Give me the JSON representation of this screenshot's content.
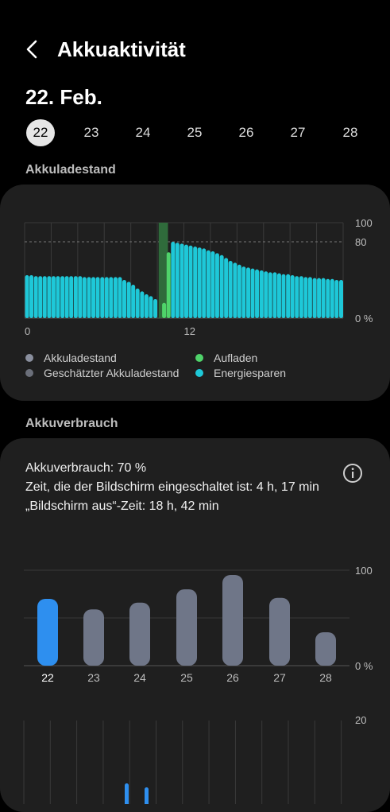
{
  "header": {
    "title": "Akkuaktivität",
    "back_icon": "chevron-left-icon"
  },
  "selected_date": "22. Feb.",
  "days": [
    {
      "label": "22",
      "selected": true
    },
    {
      "label": "23",
      "selected": false
    },
    {
      "label": "24",
      "selected": false
    },
    {
      "label": "25",
      "selected": false
    },
    {
      "label": "26",
      "selected": false
    },
    {
      "label": "27",
      "selected": false
    },
    {
      "label": "28",
      "selected": false
    }
  ],
  "battery_level": {
    "section_title": "Akkuladestand",
    "legend": [
      {
        "label": "Akkuladestand",
        "color": "#8a8f9e"
      },
      {
        "label": "Geschätzter Akkuladestand",
        "color": "#6b6f7a"
      },
      {
        "label": "Aufladen",
        "color": "#4fd36a"
      },
      {
        "label": "Energiesparen",
        "color": "#1ec8d8"
      }
    ]
  },
  "battery_usage": {
    "section_title": "Akkuverbrauch",
    "usage_line": "Akkuverbrauch: 70 %",
    "screen_on_line": "Zeit, die der Bildschirm eingeschaltet ist: 4 h, 17 min",
    "screen_off_line": "„Bildschirm aus“-Zeit: 18 h, 42 min",
    "info_icon": "info-icon"
  },
  "chart_data": [
    {
      "type": "bar",
      "title": "",
      "xlabel": "",
      "ylabel": "",
      "x_tick_labels": [
        "0",
        "12"
      ],
      "y_tick_labels": [
        "100",
        "80",
        "0 %"
      ],
      "ylim": [
        0,
        100
      ],
      "x_range_hours": [
        0,
        24
      ],
      "reference_line": 80,
      "charging_window_hours": [
        10.1,
        10.8
      ],
      "series": [
        {
          "name": "Energiesparen",
          "color": "#1ec8d8",
          "x": [
            0,
            0.33,
            0.67,
            1,
            1.33,
            1.67,
            2,
            2.33,
            2.67,
            3,
            3.33,
            3.67,
            4,
            4.33,
            4.67,
            5,
            5.33,
            5.67,
            6,
            6.33,
            6.67,
            7,
            7.33,
            7.67,
            8,
            8.33,
            8.67,
            9,
            9.33,
            9.67,
            11,
            11.33,
            11.67,
            12,
            12.33,
            12.67,
            13,
            13.33,
            13.67,
            14,
            14.33,
            14.67,
            15,
            15.33,
            15.67,
            16,
            16.33,
            16.67,
            17,
            17.33,
            17.67,
            18,
            18.33,
            18.67,
            19,
            19.33,
            19.67,
            20,
            20.33,
            20.67,
            21,
            21.33,
            21.67,
            22,
            22.33,
            22.67,
            23,
            23.33,
            23.67
          ],
          "values": [
            45,
            45,
            44,
            44,
            44,
            44,
            44,
            44,
            44,
            44,
            44,
            44,
            44,
            43,
            43,
            43,
            43,
            43,
            43,
            43,
            43,
            43,
            40,
            38,
            35,
            31,
            28,
            25,
            23,
            20,
            80,
            79,
            78,
            77,
            76,
            75,
            74,
            73,
            71,
            70,
            68,
            66,
            63,
            60,
            58,
            56,
            54,
            53,
            52,
            51,
            50,
            49,
            48,
            48,
            47,
            46,
            46,
            45,
            44,
            44,
            43,
            43,
            42,
            42,
            42,
            41,
            41,
            40,
            40
          ]
        },
        {
          "name": "Aufladen",
          "color": "#4fd36a",
          "x": [
            10.33,
            10.67
          ],
          "values": [
            16,
            69
          ]
        }
      ]
    },
    {
      "type": "bar",
      "title": "",
      "xlabel": "",
      "ylabel": "",
      "categories": [
        "22",
        "23",
        "24",
        "25",
        "26",
        "27",
        "28"
      ],
      "values": [
        70,
        59,
        66,
        80,
        95,
        71,
        35
      ],
      "highlight_index": 0,
      "y_tick_labels": [
        "100",
        "0 %"
      ],
      "ylim": [
        0,
        100
      ]
    },
    {
      "type": "bar",
      "title": "",
      "y_tick_labels": [
        "20"
      ],
      "ylim": [
        0,
        20
      ],
      "note": "partially visible chart, cut off at bottom"
    }
  ]
}
